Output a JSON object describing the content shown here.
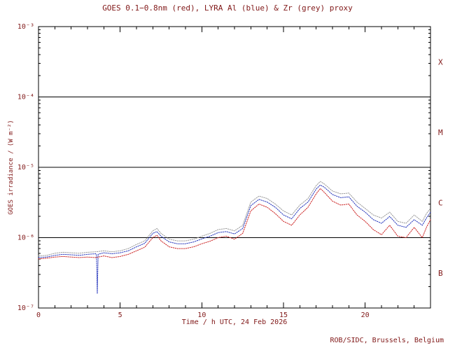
{
  "chart_data": {
    "type": "line",
    "title": "GOES 0.1−0.8nm (red), LYRA Al (blue) & Zr (grey) proxy",
    "xlabel": "Time / h UTC, 24 Feb 2026",
    "ylabel": "GOES irradiance / (W m⁻²)",
    "credit": "ROB/SIDC, Brussels, Belgium",
    "xlim": [
      0,
      24
    ],
    "ylim": [
      1e-07,
      0.001
    ],
    "ylog": true,
    "legend": "none",
    "x_minor_step": 1,
    "xticks": [
      {
        "value": 0,
        "label": "0"
      },
      {
        "value": 5,
        "label": "5"
      },
      {
        "value": 10,
        "label": "10"
      },
      {
        "value": 15,
        "label": "15"
      },
      {
        "value": 20,
        "label": "20"
      }
    ],
    "yticks": [
      {
        "value": 0.001,
        "label": "10⁻³"
      },
      {
        "value": 0.0001,
        "label": "10⁻⁴"
      },
      {
        "value": 1e-05,
        "label": "10⁻⁵"
      },
      {
        "value": 1e-06,
        "label": "10⁻⁶"
      },
      {
        "value": 1e-07,
        "label": "10⁻⁷"
      }
    ],
    "class_lines": [
      0.0001,
      1e-05,
      1e-06
    ],
    "flare_classes": [
      {
        "label": "X",
        "y": 0.000316
      },
      {
        "label": "M",
        "y": 3.16e-05
      },
      {
        "label": "C",
        "y": 3.16e-06
      },
      {
        "label": "B",
        "y": 3.16e-07
      }
    ],
    "colors": {
      "text": "#801818",
      "axis": "#000000",
      "background": "#ffffff",
      "red": "#cc2222",
      "blue": "#2233bb",
      "grey": "#9a9a9a"
    },
    "series": [
      {
        "name": "LYRA Zr proxy",
        "color": "#9a9a9a",
        "points": [
          [
            0,
            5.5e-07
          ],
          [
            0.5,
            5.6e-07
          ],
          [
            1,
            6e-07
          ],
          [
            1.5,
            6.2e-07
          ],
          [
            2,
            6.1e-07
          ],
          [
            2.5,
            6e-07
          ],
          [
            3,
            6.2e-07
          ],
          [
            3.5,
            6.3e-07
          ],
          [
            4,
            6.5e-07
          ],
          [
            4.5,
            6.3e-07
          ],
          [
            5,
            6.5e-07
          ],
          [
            5.5,
            7e-07
          ],
          [
            6,
            8e-07
          ],
          [
            6.5,
            9e-07
          ],
          [
            7,
            1.25e-06
          ],
          [
            7.25,
            1.35e-06
          ],
          [
            7.5,
            1.15e-06
          ],
          [
            8,
            9.5e-07
          ],
          [
            8.5,
            9e-07
          ],
          [
            9,
            9e-07
          ],
          [
            9.5,
            9.5e-07
          ],
          [
            10,
            1.05e-06
          ],
          [
            10.5,
            1.15e-06
          ],
          [
            11,
            1.3e-06
          ],
          [
            11.5,
            1.35e-06
          ],
          [
            12,
            1.25e-06
          ],
          [
            12.5,
            1.5e-06
          ],
          [
            13,
            3.2e-06
          ],
          [
            13.5,
            3.9e-06
          ],
          [
            14,
            3.6e-06
          ],
          [
            14.5,
            3e-06
          ],
          [
            15,
            2.4e-06
          ],
          [
            15.5,
            2.1e-06
          ],
          [
            16,
            2.9e-06
          ],
          [
            16.5,
            3.6e-06
          ],
          [
            17,
            5.5e-06
          ],
          [
            17.25,
            6.3e-06
          ],
          [
            17.5,
            5.8e-06
          ],
          [
            18,
            4.6e-06
          ],
          [
            18.5,
            4.2e-06
          ],
          [
            19,
            4.3e-06
          ],
          [
            19.5,
            3.2e-06
          ],
          [
            20,
            2.6e-06
          ],
          [
            20.5,
            2.1e-06
          ],
          [
            21,
            1.9e-06
          ],
          [
            21.5,
            2.3e-06
          ],
          [
            22,
            1.7e-06
          ],
          [
            22.5,
            1.6e-06
          ],
          [
            23,
            2.1e-06
          ],
          [
            23.5,
            1.7e-06
          ],
          [
            23.75,
            2.2e-06
          ],
          [
            24,
            2.6e-06
          ]
        ]
      },
      {
        "name": "LYRA Al proxy",
        "color": "#2233bb",
        "points": [
          [
            0,
            5.2e-07
          ],
          [
            0.5,
            5.3e-07
          ],
          [
            1,
            5.6e-07
          ],
          [
            1.5,
            5.8e-07
          ],
          [
            2,
            5.7e-07
          ],
          [
            2.5,
            5.6e-07
          ],
          [
            3,
            5.8e-07
          ],
          [
            3.5,
            5.9e-07
          ],
          [
            3.55,
            5.8e-07
          ],
          [
            3.6,
            1.6e-07
          ],
          [
            3.65,
            5.8e-07
          ],
          [
            4,
            6.1e-07
          ],
          [
            4.5,
            5.9e-07
          ],
          [
            5,
            6.1e-07
          ],
          [
            5.5,
            6.5e-07
          ],
          [
            6,
            7.4e-07
          ],
          [
            6.5,
            8.3e-07
          ],
          [
            7,
            1.15e-06
          ],
          [
            7.25,
            1.22e-06
          ],
          [
            7.5,
            1.05e-06
          ],
          [
            8,
            8.7e-07
          ],
          [
            8.5,
            8.2e-07
          ],
          [
            9,
            8.2e-07
          ],
          [
            9.5,
            8.7e-07
          ],
          [
            10,
            9.6e-07
          ],
          [
            10.5,
            1.05e-06
          ],
          [
            11,
            1.18e-06
          ],
          [
            11.5,
            1.22e-06
          ],
          [
            12,
            1.13e-06
          ],
          [
            12.5,
            1.35e-06
          ],
          [
            13,
            2.85e-06
          ],
          [
            13.5,
            3.5e-06
          ],
          [
            14,
            3.2e-06
          ],
          [
            14.5,
            2.7e-06
          ],
          [
            15,
            2.1e-06
          ],
          [
            15.5,
            1.85e-06
          ],
          [
            16,
            2.6e-06
          ],
          [
            16.5,
            3.2e-06
          ],
          [
            17,
            4.9e-06
          ],
          [
            17.25,
            5.6e-06
          ],
          [
            17.5,
            5.2e-06
          ],
          [
            18,
            4.1e-06
          ],
          [
            18.5,
            3.7e-06
          ],
          [
            19,
            3.8e-06
          ],
          [
            19.5,
            2.8e-06
          ],
          [
            20,
            2.3e-06
          ],
          [
            20.5,
            1.8e-06
          ],
          [
            21,
            1.6e-06
          ],
          [
            21.5,
            2e-06
          ],
          [
            22,
            1.5e-06
          ],
          [
            22.5,
            1.4e-06
          ],
          [
            23,
            1.8e-06
          ],
          [
            23.5,
            1.5e-06
          ],
          [
            23.75,
            1.9e-06
          ],
          [
            24,
            2.3e-06
          ]
        ]
      },
      {
        "name": "GOES 0.1-0.8nm",
        "color": "#cc2222",
        "points": [
          [
            0,
            5e-07
          ],
          [
            0.5,
            5.1e-07
          ],
          [
            1,
            5.3e-07
          ],
          [
            1.5,
            5.4e-07
          ],
          [
            2,
            5.3e-07
          ],
          [
            2.5,
            5.2e-07
          ],
          [
            3,
            5.3e-07
          ],
          [
            3.5,
            5.2e-07
          ],
          [
            4,
            5.5e-07
          ],
          [
            4.5,
            5.2e-07
          ],
          [
            5,
            5.4e-07
          ],
          [
            5.5,
            5.8e-07
          ],
          [
            6,
            6.5e-07
          ],
          [
            6.5,
            7.3e-07
          ],
          [
            7,
            1e-06
          ],
          [
            7.25,
            1.08e-06
          ],
          [
            7.5,
            9e-07
          ],
          [
            8,
            7.4e-07
          ],
          [
            8.5,
            7e-07
          ],
          [
            9,
            7e-07
          ],
          [
            9.5,
            7.4e-07
          ],
          [
            10,
            8.2e-07
          ],
          [
            10.5,
            8.9e-07
          ],
          [
            11,
            1e-06
          ],
          [
            11.5,
            1.05e-06
          ],
          [
            12,
            9.5e-07
          ],
          [
            12.5,
            1.15e-06
          ],
          [
            13,
            2.4e-06
          ],
          [
            13.5,
            3e-06
          ],
          [
            14,
            2.7e-06
          ],
          [
            14.5,
            2.2e-06
          ],
          [
            15,
            1.7e-06
          ],
          [
            15.5,
            1.5e-06
          ],
          [
            16,
            2.1e-06
          ],
          [
            16.5,
            2.7e-06
          ],
          [
            17,
            4.2e-06
          ],
          [
            17.25,
            5e-06
          ],
          [
            17.5,
            4.4e-06
          ],
          [
            18,
            3.3e-06
          ],
          [
            18.5,
            2.9e-06
          ],
          [
            19,
            3e-06
          ],
          [
            19.5,
            2.1e-06
          ],
          [
            20,
            1.7e-06
          ],
          [
            20.5,
            1.3e-06
          ],
          [
            21,
            1.1e-06
          ],
          [
            21.5,
            1.5e-06
          ],
          [
            22,
            1.05e-06
          ],
          [
            22.5,
            1e-06
          ],
          [
            23,
            1.4e-06
          ],
          [
            23.5,
            1e-06
          ],
          [
            23.75,
            1.4e-06
          ],
          [
            24,
            1.8e-06
          ]
        ]
      }
    ]
  }
}
